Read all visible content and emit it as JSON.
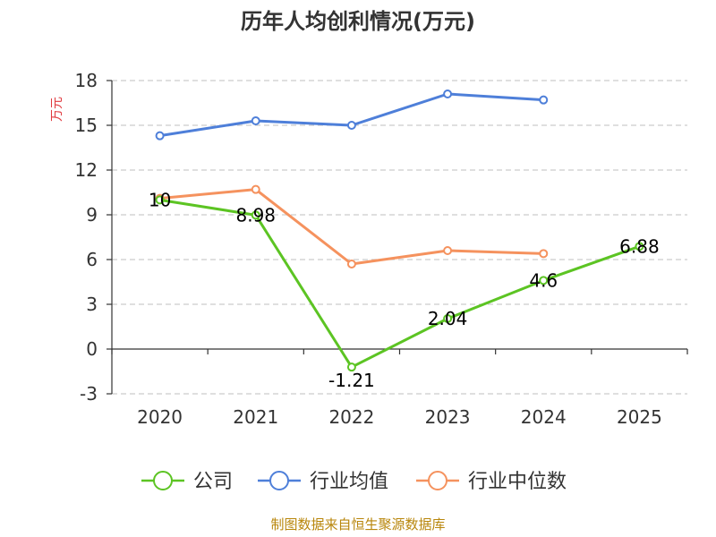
{
  "chart_data": {
    "type": "line",
    "title": "历年人均创利情况(万元)",
    "ylabel": "万元",
    "xlabel": "",
    "categories": [
      "2020",
      "2021",
      "2022",
      "2023",
      "2024",
      "2025"
    ],
    "ylim": [
      -3,
      18
    ],
    "yticks": [
      -3,
      0,
      3,
      6,
      9,
      12,
      15,
      18
    ],
    "grid": true,
    "legend_position": "bottom",
    "series": [
      {
        "name": "公司",
        "color": "#5cc423",
        "values": [
          10,
          8.98,
          -1.21,
          2.04,
          4.6,
          6.88
        ],
        "labels": [
          "10",
          "8.98",
          "-1.21",
          "2.04",
          "4.6",
          "6.88"
        ]
      },
      {
        "name": "行业均值",
        "color": "#4e7fd9",
        "values": [
          14.3,
          15.3,
          15.0,
          17.1,
          16.7,
          null
        ]
      },
      {
        "name": "行业中位数",
        "color": "#f5925e",
        "values": [
          10.1,
          10.7,
          5.7,
          6.6,
          6.4,
          null
        ]
      }
    ]
  },
  "source": "制图数据来自恒生聚源数据库"
}
